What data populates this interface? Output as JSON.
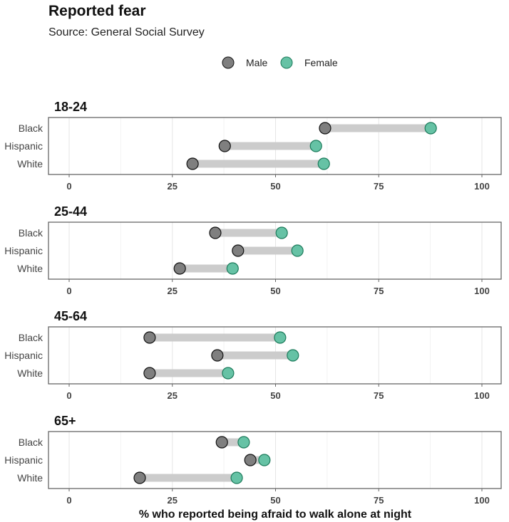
{
  "chart_data": {
    "type": "dumbbell",
    "title": "Reported fear",
    "subtitle": "Source: General Social Survey",
    "xlabel": "% who reported being afraid to walk alone at night",
    "xlim": [
      0,
      100
    ],
    "xticks": [
      0,
      25,
      50,
      75,
      100
    ],
    "grid": true,
    "legend_position": "top",
    "legend": [
      {
        "name": "Male",
        "color": "#7f7f7f"
      },
      {
        "name": "Female",
        "color": "#66c2a5"
      }
    ],
    "categories": [
      "Black",
      "Hispanic",
      "White"
    ],
    "panels": [
      {
        "label": "18-24",
        "male": [
          62,
          37.7,
          29.9
        ],
        "female": [
          87.6,
          59.8,
          61.7
        ]
      },
      {
        "label": "25-44",
        "male": [
          35.4,
          40.9,
          26.8
        ],
        "female": [
          51.5,
          55.3,
          39.6
        ]
      },
      {
        "label": "45-64",
        "male": [
          19.5,
          35.9,
          19.5
        ],
        "female": [
          51.1,
          54.2,
          38.5
        ]
      },
      {
        "label": "65+",
        "male": [
          37.0,
          43.9,
          17.1
        ],
        "female": [
          42.3,
          47.3,
          40.6
        ]
      }
    ]
  }
}
